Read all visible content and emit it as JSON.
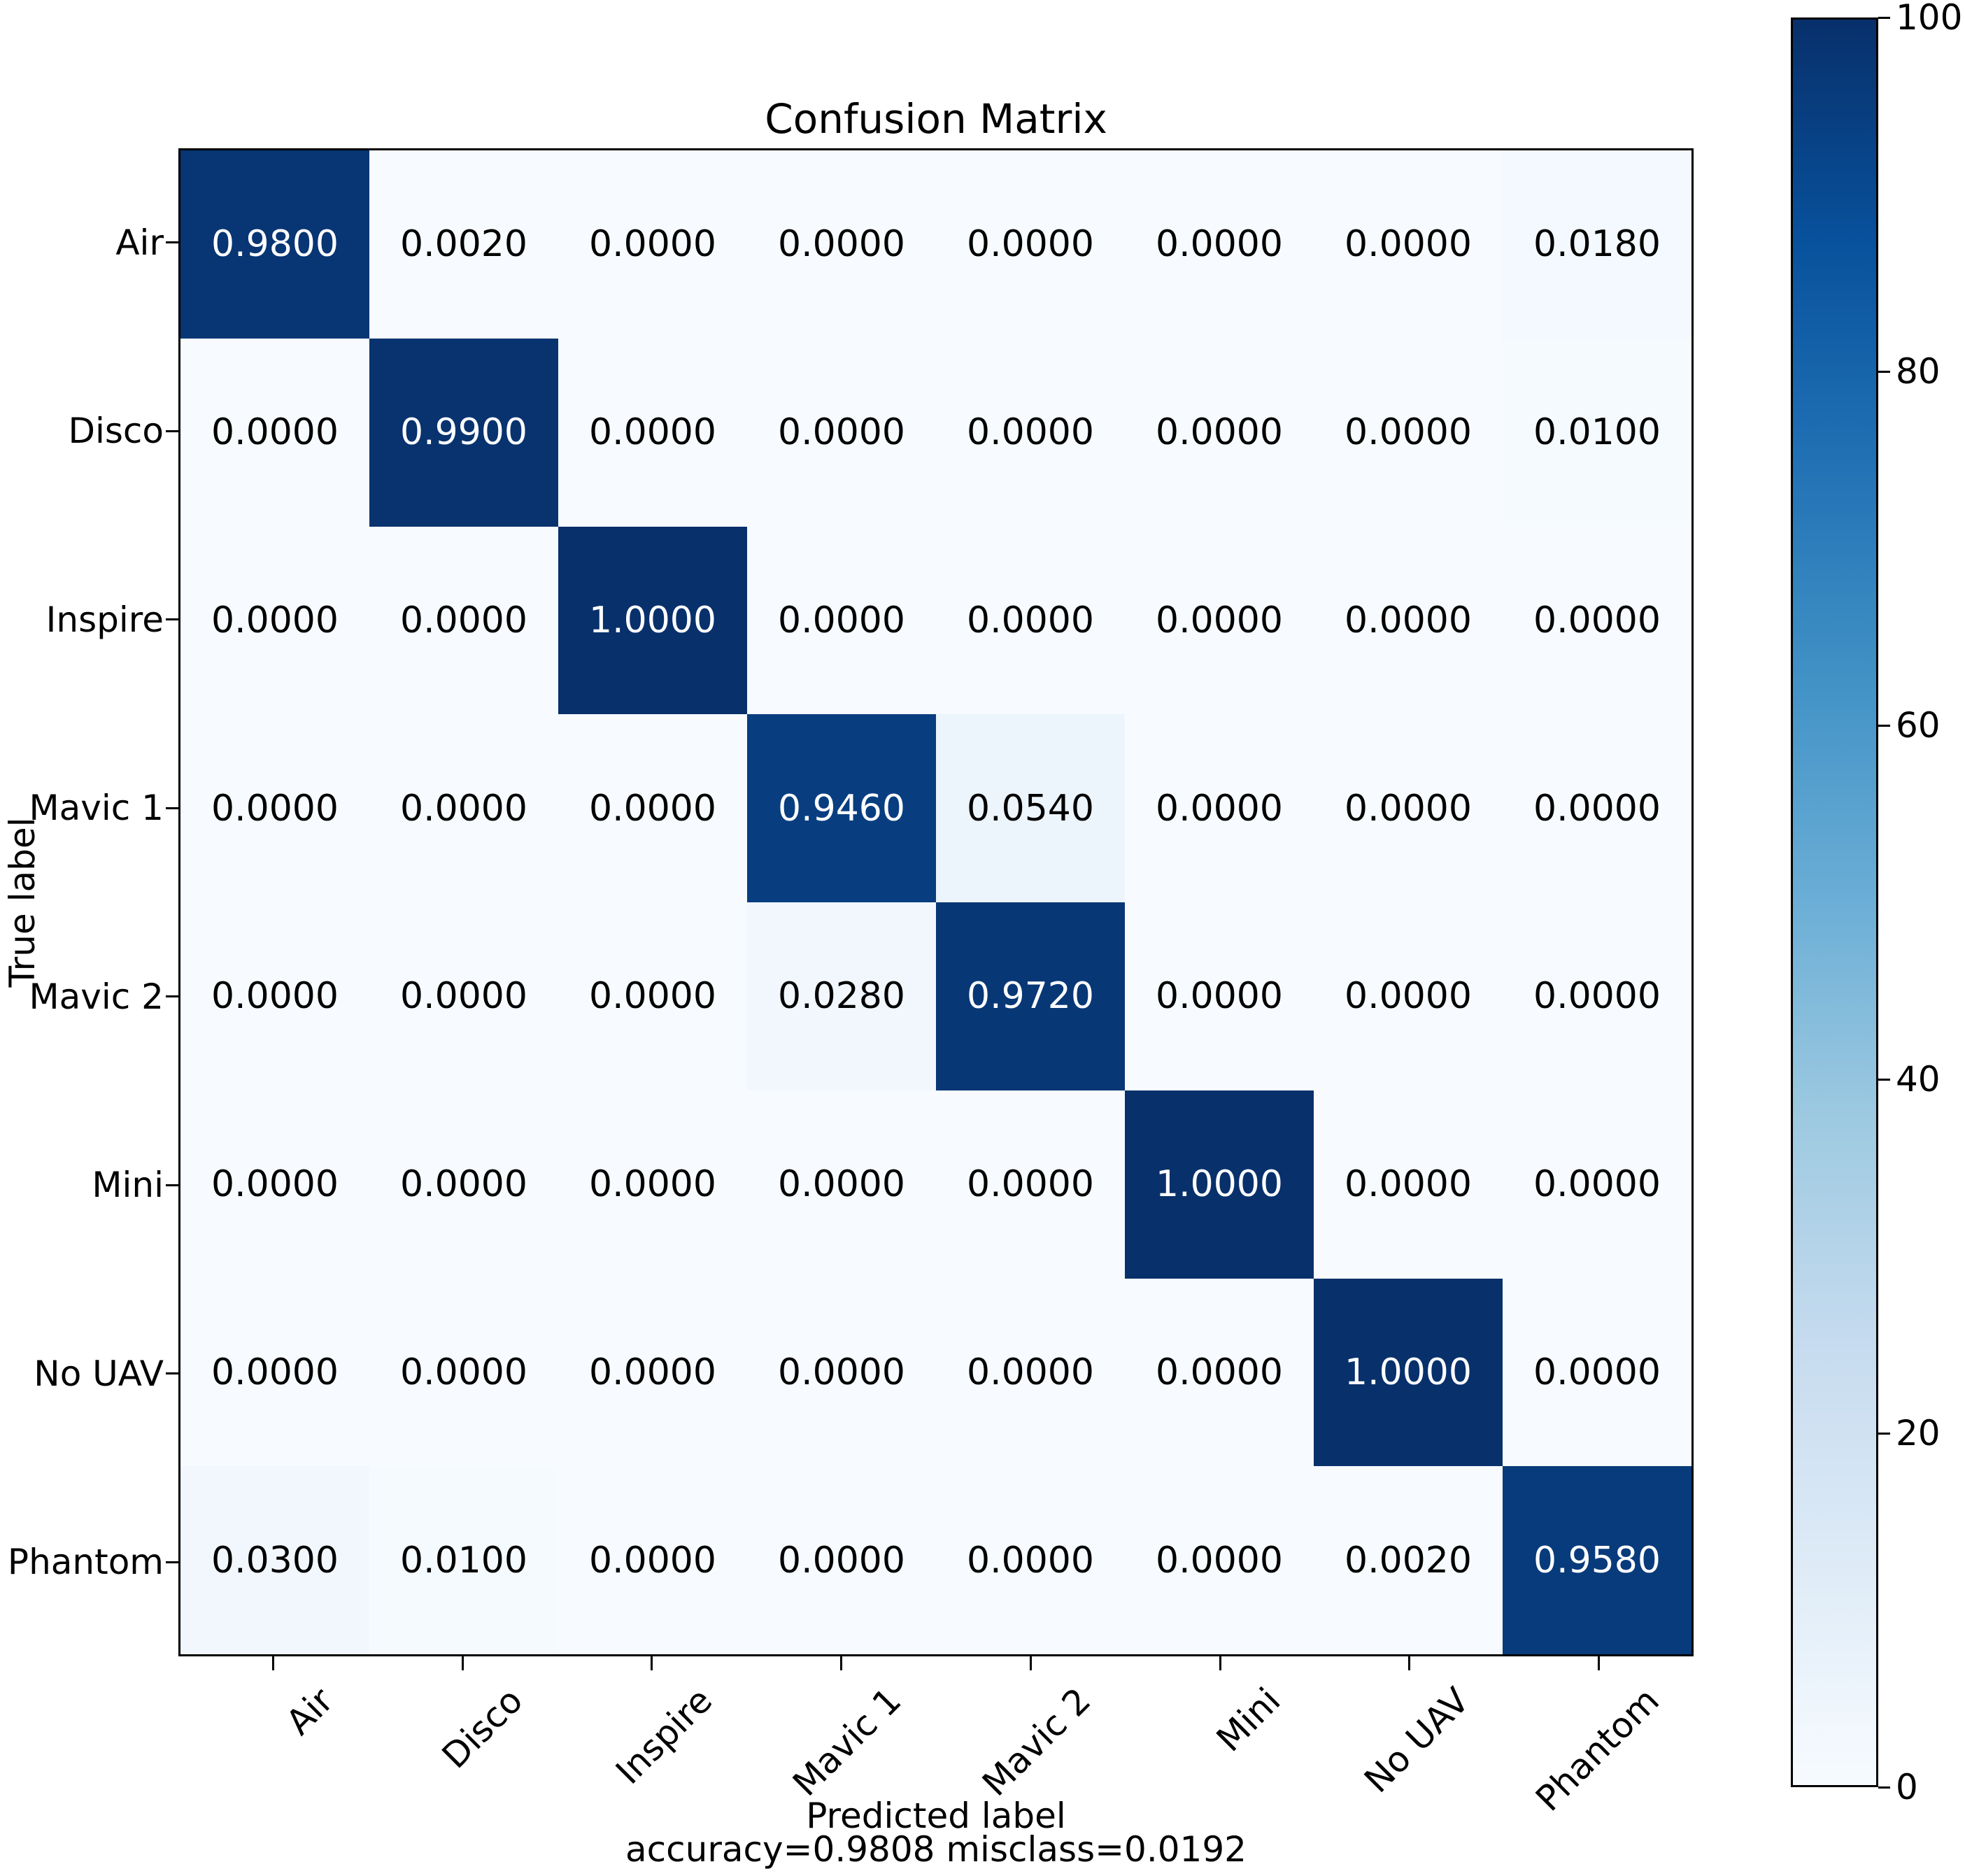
{
  "chart_data": {
    "type": "heatmap",
    "title": "Confusion Matrix",
    "xlabel": "Predicted label",
    "ylabel": "True label",
    "annotation": "accuracy=0.9808 misclass=0.0192",
    "accuracy": 0.9808,
    "misclass": 0.0192,
    "categories": [
      "Air",
      "Disco",
      "Inspire",
      "Mavic 1",
      "Mavic 2",
      "Mini",
      "No UAV",
      "Phantom"
    ],
    "matrix": [
      [
        0.98,
        0.002,
        0.0,
        0.0,
        0.0,
        0.0,
        0.0,
        0.018
      ],
      [
        0.0,
        0.99,
        0.0,
        0.0,
        0.0,
        0.0,
        0.0,
        0.01
      ],
      [
        0.0,
        0.0,
        1.0,
        0.0,
        0.0,
        0.0,
        0.0,
        0.0
      ],
      [
        0.0,
        0.0,
        0.0,
        0.946,
        0.054,
        0.0,
        0.0,
        0.0
      ],
      [
        0.0,
        0.0,
        0.0,
        0.028,
        0.972,
        0.0,
        0.0,
        0.0
      ],
      [
        0.0,
        0.0,
        0.0,
        0.0,
        0.0,
        1.0,
        0.0,
        0.0
      ],
      [
        0.0,
        0.0,
        0.0,
        0.0,
        0.0,
        0.0,
        1.0,
        0.0
      ],
      [
        0.03,
        0.01,
        0.0,
        0.0,
        0.0,
        0.0,
        0.002,
        0.958
      ]
    ],
    "value_decimals": 4,
    "grid": false,
    "legend": false,
    "colorbar": {
      "min": 0,
      "max": 100,
      "ticks": [
        0,
        20,
        40,
        60,
        80,
        100
      ]
    },
    "colormap": {
      "name": "Blues",
      "anchors": [
        "#f7fbff",
        "#deebf7",
        "#c6dbef",
        "#9ecae1",
        "#6baed6",
        "#4292c6",
        "#2171b5",
        "#08519c",
        "#08306b"
      ]
    },
    "cell_text_colors": {
      "light": "#ffffff",
      "dark": "#000000"
    },
    "cell_text_threshold": 0.5
  }
}
